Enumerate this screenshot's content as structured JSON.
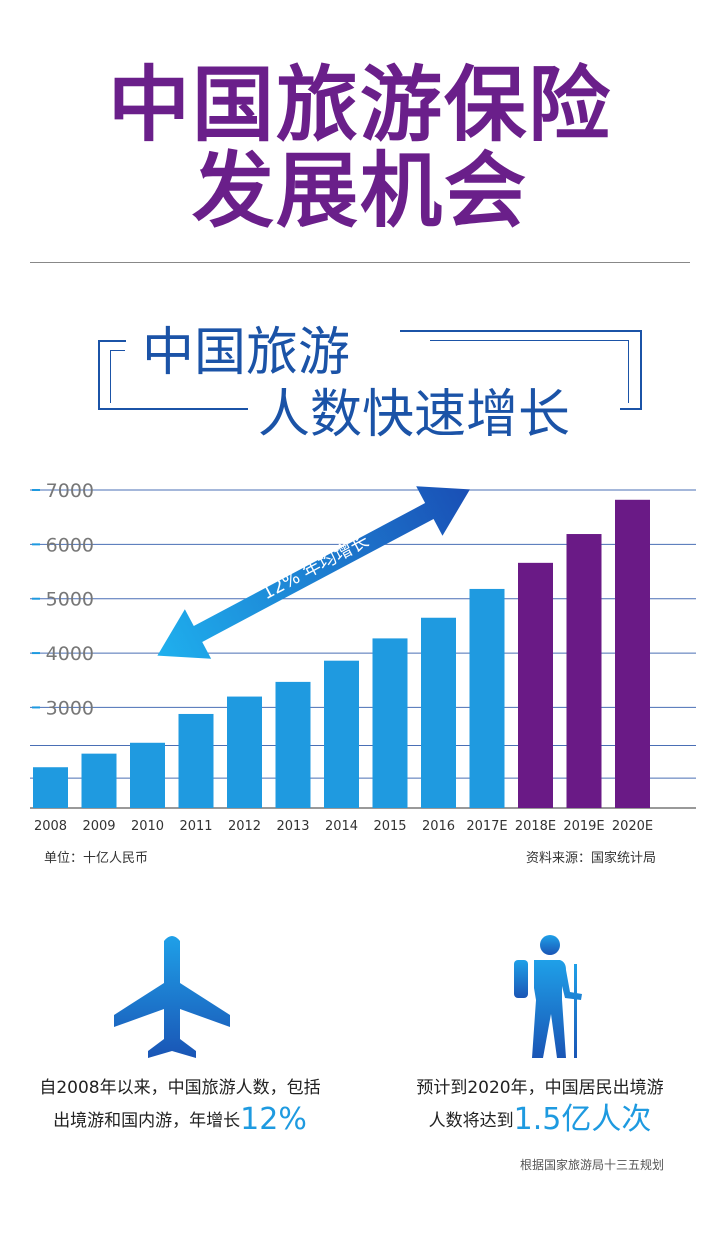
{
  "title": {
    "line1": "中国旅游保险",
    "line2": "发展机会"
  },
  "subtitle": {
    "line1": "中国旅游",
    "line2": "人数快速增长"
  },
  "chart_data": {
    "type": "bar",
    "categories": [
      "2008",
      "2009",
      "2010",
      "2011",
      "2012",
      "2013",
      "2014",
      "2015",
      "2016",
      "2017E",
      "2018E",
      "2019E",
      "2020E"
    ],
    "values": [
      1900,
      2150,
      2350,
      2880,
      3200,
      3470,
      3860,
      4270,
      4650,
      5180,
      5660,
      6190,
      6820
    ],
    "yticks": [
      "3000",
      "4000",
      "5000",
      "6000",
      "7000"
    ],
    "ylim": [
      1150,
      7000
    ],
    "grid": true,
    "colors": {
      "actual": "#1f9ae0",
      "forecast": "#6a1a86",
      "arrow": "#1a7fd6"
    },
    "annotation": "12% 年均增长",
    "unit_note": "单位：十亿人民币",
    "source_note": "资料来源：国家统计局"
  },
  "icons": {
    "left": "airplane-icon",
    "right": "hiker-icon"
  },
  "footer": {
    "left_line1": "自2008年以来，中国旅游人数，包括",
    "left_line2": "出境游和国内游，年增长",
    "left_highlight": "12%",
    "right_line1": "预计到2020年，中国居民出境游",
    "right_line2": "人数将达到",
    "right_highlight": "1.5亿人次",
    "source": "根据国家旅游局十三五规划"
  }
}
